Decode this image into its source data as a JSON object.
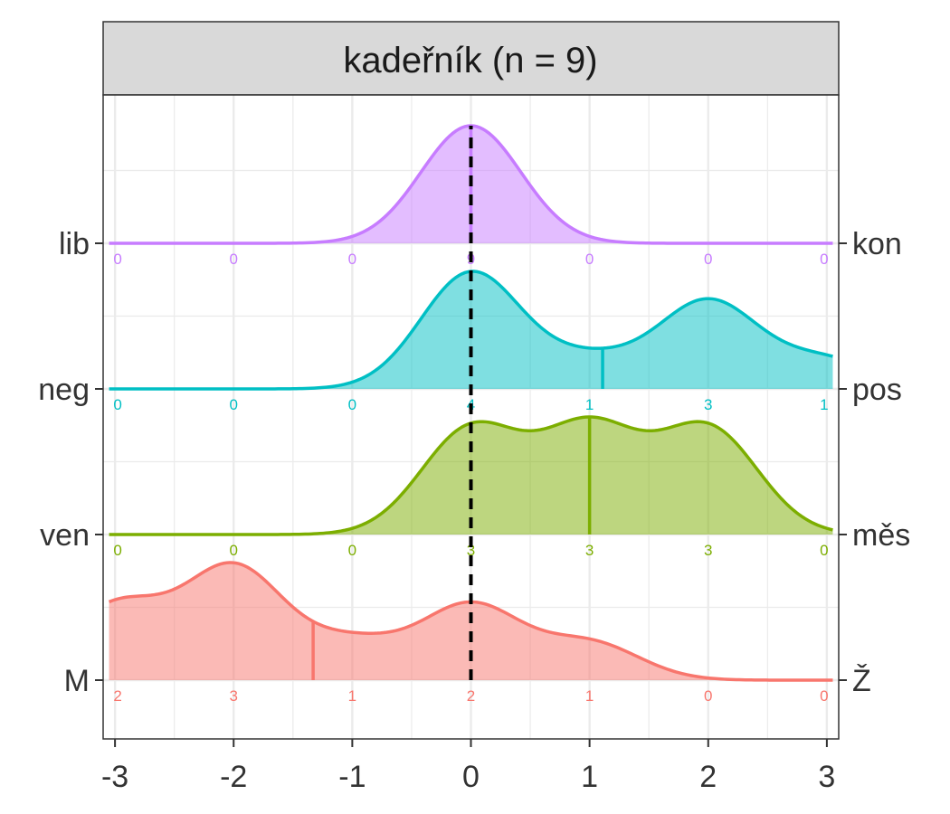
{
  "chart_data": {
    "type": "ridgeline",
    "title": "kadeřník (n = 9)",
    "xlabel": "",
    "ylabel": "",
    "xlim": [
      -3.1,
      3.1
    ],
    "x_ticks": [
      "-3",
      "-2",
      "-1",
      "0",
      "1",
      "2",
      "3"
    ],
    "score_points": [
      -3,
      -2,
      -1,
      0,
      1,
      2,
      3
    ],
    "reference_line_x": 0,
    "grid": true,
    "series": [
      {
        "left_label": "M",
        "right_label": "Ž",
        "color": "#F8766D",
        "counts": [
          2,
          3,
          1,
          2,
          1,
          0,
          0
        ],
        "mean": -1.33
      },
      {
        "left_label": "ven",
        "right_label": "měs",
        "color": "#7CAE00",
        "counts": [
          0,
          0,
          0,
          3,
          3,
          3,
          0
        ],
        "mean": 1.0
      },
      {
        "left_label": "neg",
        "right_label": "pos",
        "color": "#00BFC4",
        "counts": [
          0,
          0,
          0,
          4,
          1,
          3,
          1
        ],
        "mean": 1.11
      },
      {
        "left_label": "lib",
        "right_label": "kon",
        "color": "#C77CFF",
        "counts": [
          0,
          0,
          0,
          9,
          0,
          0,
          0
        ],
        "mean": 0.0
      }
    ]
  }
}
